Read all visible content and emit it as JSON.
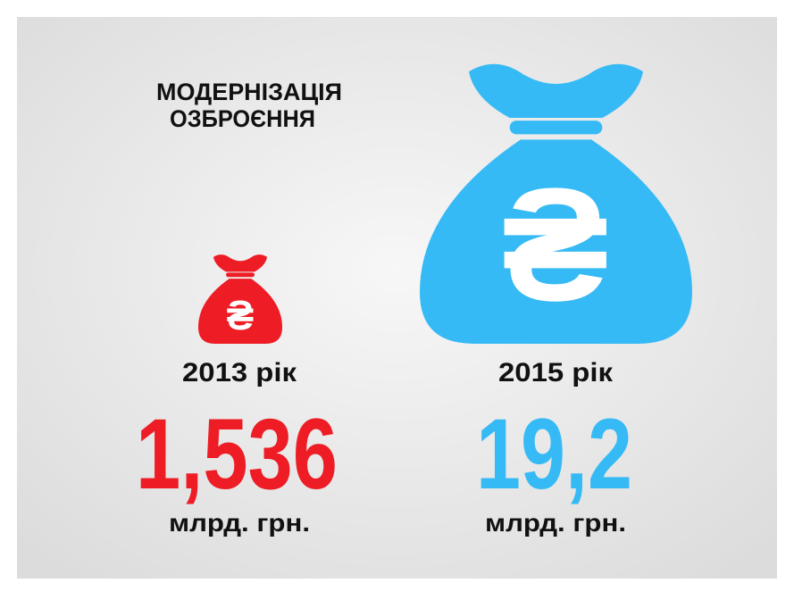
{
  "title": {
    "line1": "МОДЕРНІЗАЦІЯ",
    "line2": "ОЗБРОЄННЯ"
  },
  "currency_symbol": "₴",
  "items": [
    {
      "year": "2013 рік",
      "amount": "1,536",
      "unit": "млрд. грн."
    },
    {
      "year": "2015 рік",
      "amount": "19,2",
      "unit": "млрд. грн."
    }
  ]
}
